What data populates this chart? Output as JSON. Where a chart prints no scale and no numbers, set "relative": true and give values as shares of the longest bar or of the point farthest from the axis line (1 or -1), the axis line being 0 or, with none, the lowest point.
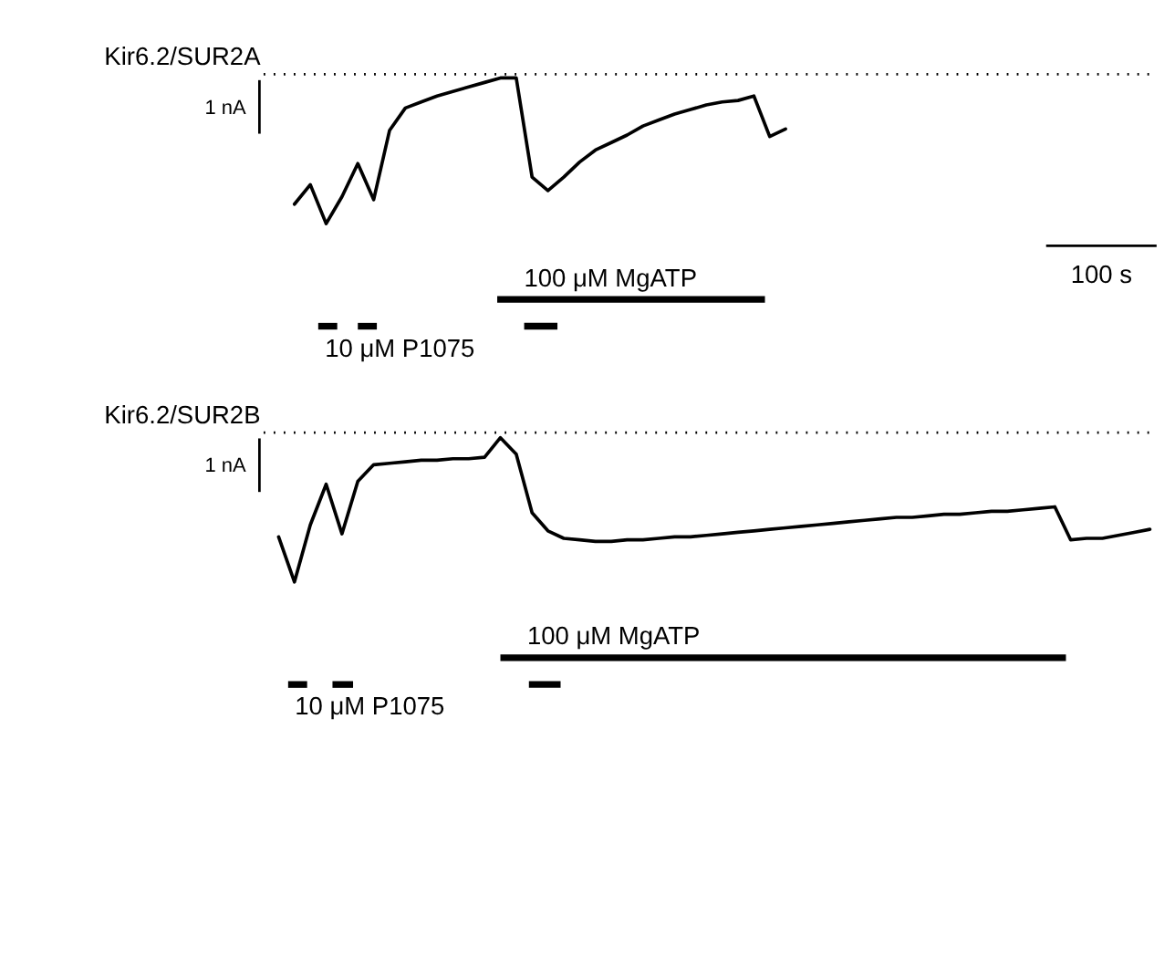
{
  "chart_data": [
    {
      "type": "line",
      "title": "Kir6.2/SUR2A",
      "relative": true,
      "legend": false,
      "categories": [
        null,
        null,
        null,
        null,
        null,
        null,
        null,
        null,
        null,
        null,
        null,
        null,
        null,
        null,
        null,
        null,
        null,
        null,
        null,
        null,
        null,
        null,
        null,
        null,
        null,
        null,
        null,
        null,
        null,
        null,
        null,
        null
      ],
      "series": [
        {
          "color": "#000000",
          "values": [
            -0.87,
            -0.74,
            -1,
            -0.82,
            -0.6,
            -0.84,
            -0.38,
            -0.23,
            -0.19,
            -0.15,
            -0.12,
            -0.09,
            -0.06,
            -0.03,
            -0.03,
            -0.69,
            -0.78,
            -0.69,
            -0.59,
            -0.51,
            -0.46,
            -0.41,
            -0.35,
            -0.31,
            -0.27,
            -0.24,
            -0.21,
            -0.19,
            -0.18,
            -0.15,
            -0.42,
            -0.37
          ]
        }
      ],
      "annotations": [
        "1 nA",
        "100 s",
        "10 μM P1075",
        "100 μM MgATP"
      ]
    },
    {
      "type": "line",
      "title": "Kir6.2/SUR2B",
      "relative": true,
      "legend": false,
      "categories": [
        null,
        null,
        null,
        null,
        null,
        null,
        null,
        null,
        null,
        null,
        null,
        null,
        null,
        null,
        null,
        null,
        null,
        null,
        null,
        null,
        null,
        null,
        null,
        null,
        null,
        null,
        null,
        null,
        null,
        null,
        null,
        null,
        null,
        null,
        null,
        null,
        null,
        null,
        null,
        null,
        null,
        null,
        null,
        null,
        null,
        null,
        null,
        null,
        null,
        null,
        null,
        null,
        null,
        null,
        null,
        null
      ],
      "series": [
        {
          "color": "#000000",
          "values": [
            -0.7,
            -1,
            -0.62,
            -0.35,
            -0.68,
            -0.33,
            -0.22,
            -0.21,
            -0.2,
            -0.19,
            -0.19,
            -0.18,
            -0.18,
            -0.17,
            -0.04,
            -0.15,
            -0.54,
            -0.66,
            -0.71,
            -0.72,
            -0.73,
            -0.73,
            -0.72,
            -0.72,
            -0.71,
            -0.7,
            -0.7,
            -0.69,
            -0.68,
            -0.67,
            -0.66,
            -0.65,
            -0.64,
            -0.63,
            -0.62,
            -0.61,
            -0.6,
            -0.59,
            -0.58,
            -0.57,
            -0.57,
            -0.56,
            -0.55,
            -0.55,
            -0.54,
            -0.53,
            -0.53,
            -0.52,
            -0.51,
            -0.5,
            -0.72,
            -0.71,
            -0.71,
            -0.69,
            -0.67,
            -0.65
          ]
        }
      ],
      "annotations": [
        "1 nA",
        "10 μM P1075",
        "100 μM MgATP"
      ]
    }
  ]
}
